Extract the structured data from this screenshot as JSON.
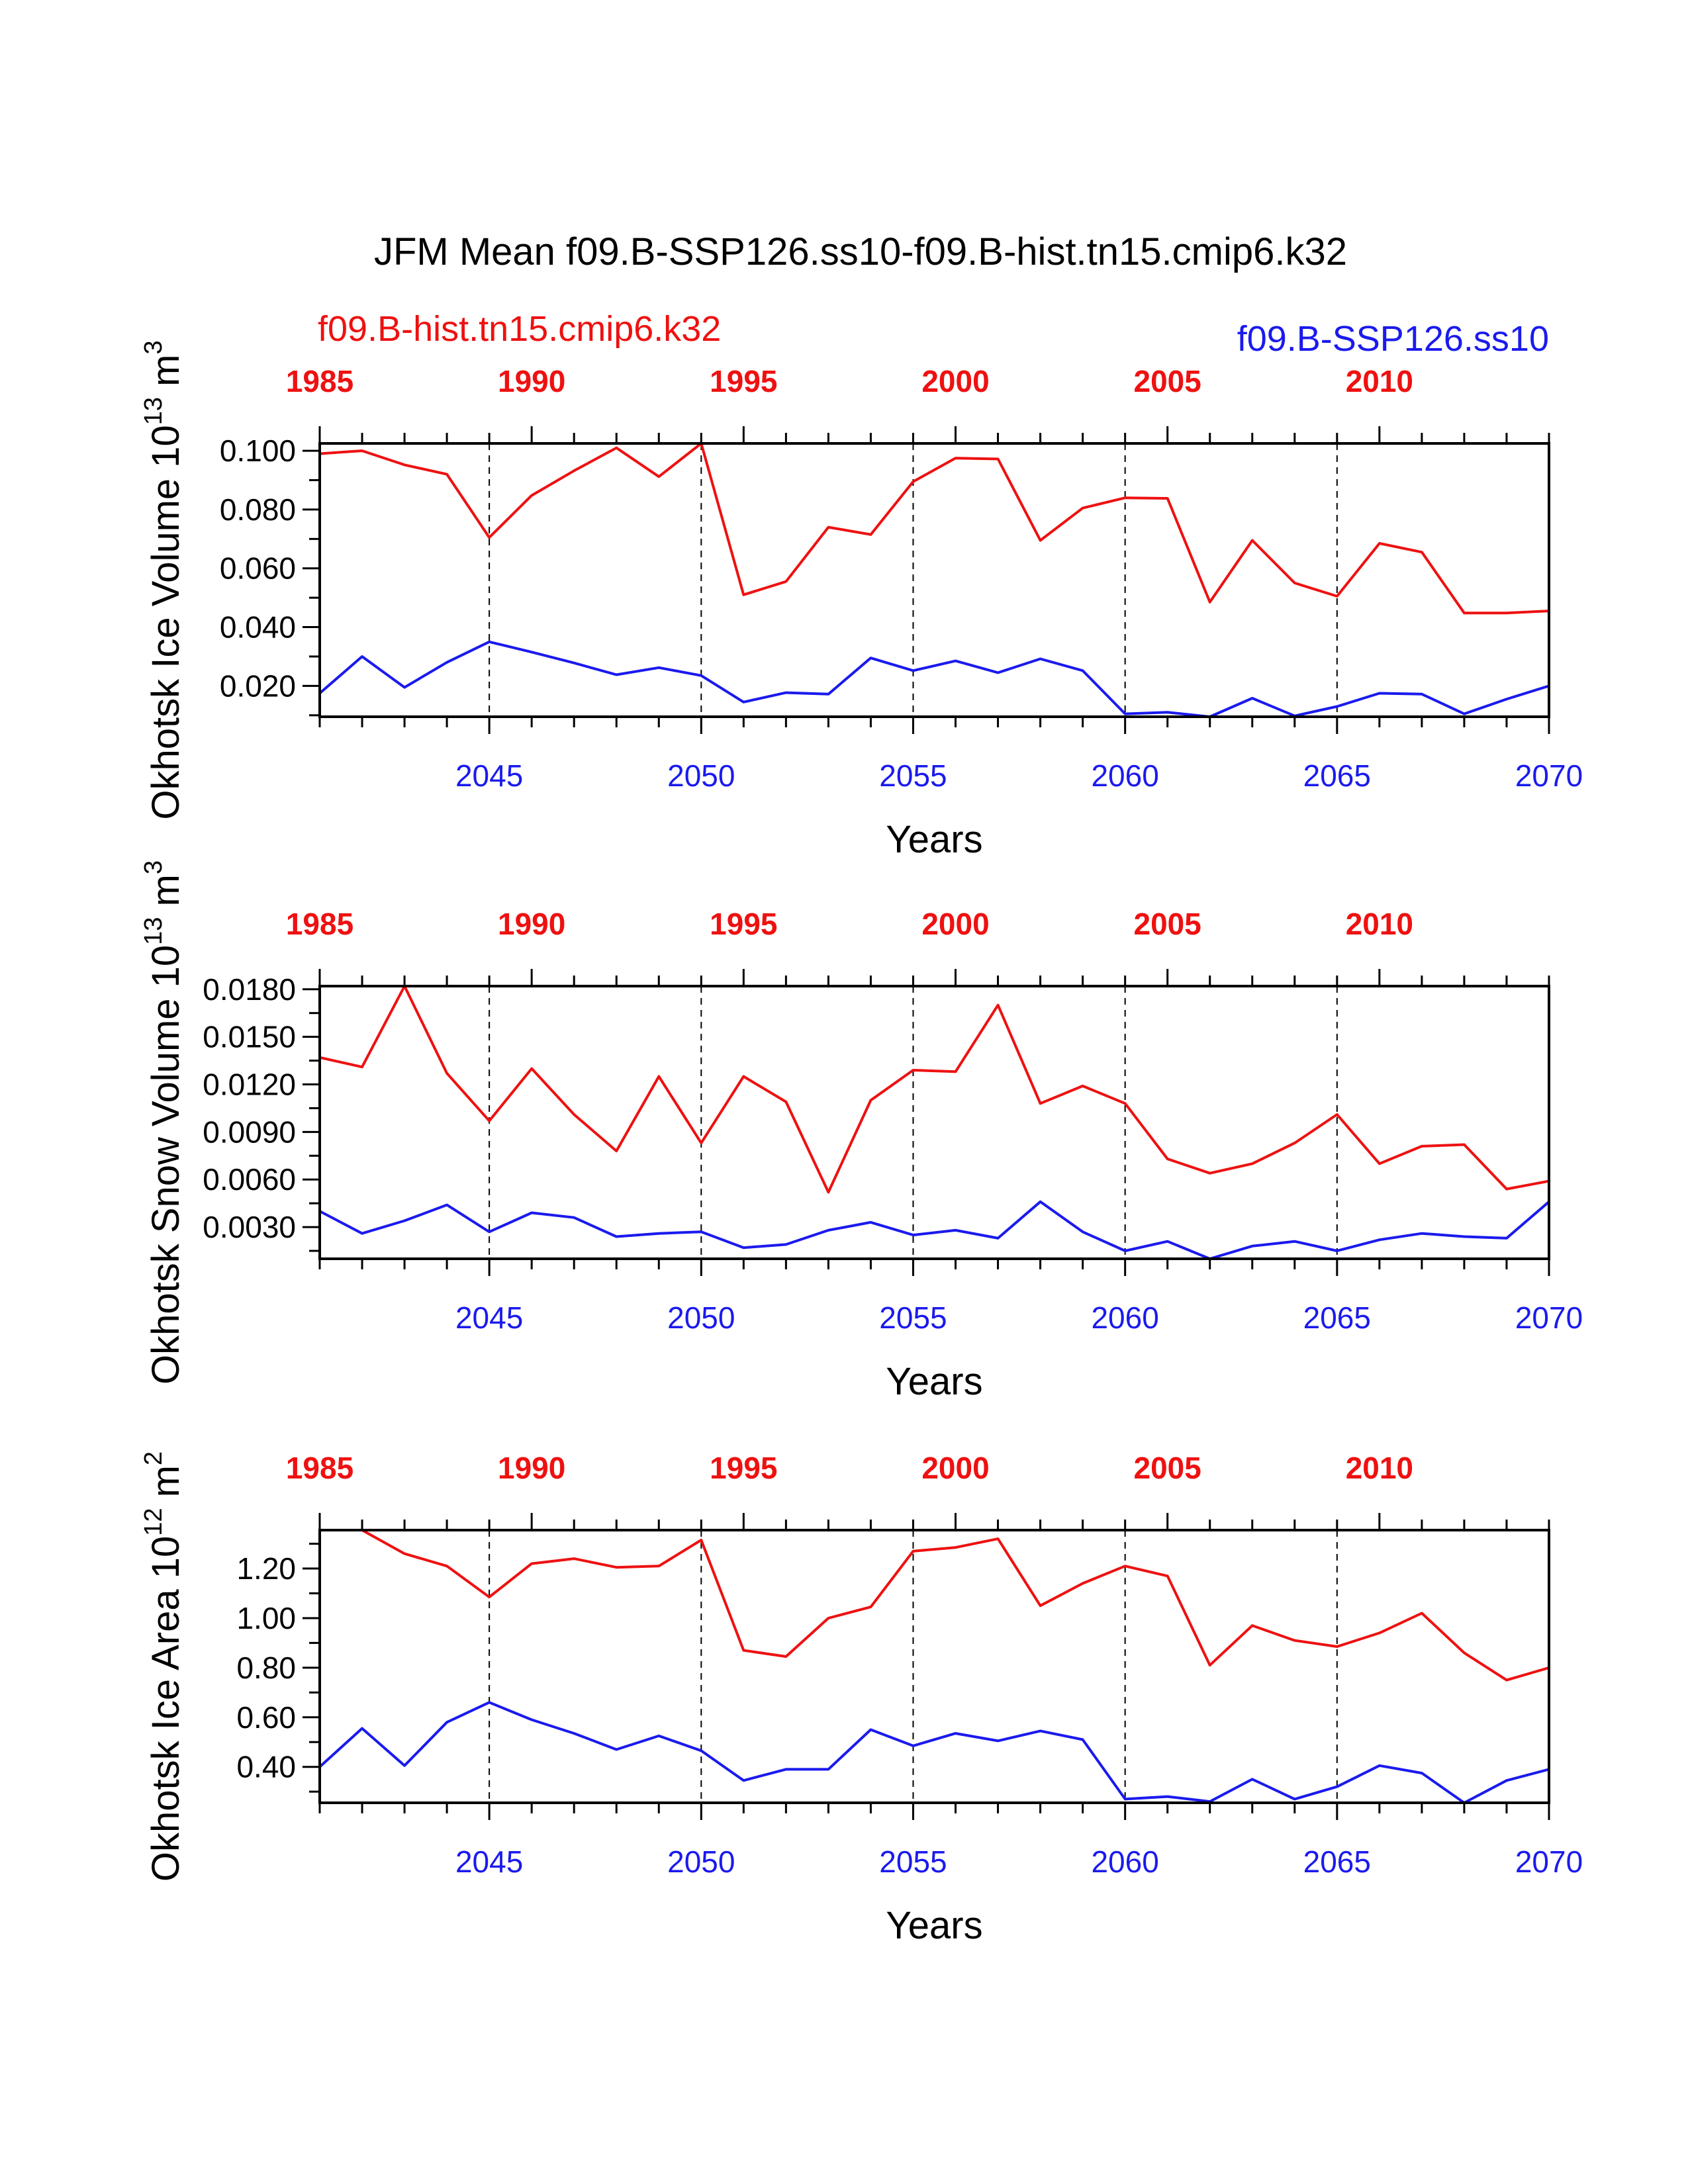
{
  "title": "JFM Mean f09.B-SSP126.ss10-f09.B-hist.tn15.cmip6.k32",
  "legend": {
    "hist_label": "f09.B-hist.tn15.cmip6.k32",
    "ssp_label": "f09.B-SSP126.ss10"
  },
  "colors": {
    "hist": "#ee1111",
    "ssp": "#1a1aee",
    "axis": "#000000"
  },
  "chart_data": [
    {
      "type": "line",
      "ylabel": "Okhotsk Ice Volume 10",
      "ylabel_exp": "13",
      "ylabel_unit": " m",
      "ylabel_unit_exp": "3",
      "xlabel": "Years",
      "ylim": [
        0.0095,
        0.1025
      ],
      "yticks": [
        0.02,
        0.04,
        0.06,
        0.08,
        0.1
      ],
      "ytick_labels": [
        "0.020",
        "0.040",
        "0.060",
        "0.080",
        "0.100"
      ],
      "bottom_xlim": [
        2041,
        2070
      ],
      "bottom_ticks": [
        2045,
        2050,
        2055,
        2060,
        2065,
        2070
      ],
      "top_ticks": [
        1985,
        1990,
        1995,
        2000,
        2005,
        2010
      ],
      "top_tick_offset": 56,
      "grid_x": [
        2045,
        2050,
        2055,
        2060,
        2065
      ],
      "series": [
        {
          "name": "f09.B-hist.tn15.cmip6.k32",
          "x": [
            2041,
            2042,
            2043,
            2044,
            2045,
            2046,
            2047,
            2048,
            2049,
            2050,
            2051,
            2052,
            2053,
            2054,
            2055,
            2056,
            2057,
            2058,
            2059,
            2060,
            2061,
            2062,
            2063,
            2064,
            2065,
            2066,
            2067,
            2068,
            2069,
            2070
          ],
          "values": [
            0.099,
            0.1,
            0.0952,
            0.092,
            0.0705,
            0.0848,
            0.0932,
            0.101,
            0.0912,
            0.1025,
            0.051,
            0.0555,
            0.074,
            0.0715,
            0.0895,
            0.0975,
            0.0972,
            0.0695,
            0.0805,
            0.084,
            0.0838,
            0.0485,
            0.0695,
            0.055,
            0.0505,
            0.0685,
            0.0655,
            0.0448,
            0.0448,
            0.0455
          ]
        },
        {
          "name": "f09.B-SSP126.ss10",
          "x": [
            2041,
            2042,
            2043,
            2044,
            2045,
            2046,
            2047,
            2048,
            2049,
            2050,
            2051,
            2052,
            2053,
            2054,
            2055,
            2056,
            2057,
            2058,
            2059,
            2060,
            2061,
            2062,
            2063,
            2064,
            2065,
            2066,
            2067,
            2068,
            2069,
            2070
          ],
          "values": [
            0.0175,
            0.03,
            0.0195,
            0.028,
            0.035,
            0.0315,
            0.0278,
            0.0238,
            0.0262,
            0.0235,
            0.0145,
            0.0177,
            0.0172,
            0.0295,
            0.0252,
            0.0285,
            0.0245,
            0.0292,
            0.0252,
            0.0105,
            0.011,
            0.0095,
            0.0158,
            0.0098,
            0.013,
            0.0175,
            0.0172,
            0.0105,
            0.0155,
            0.02
          ]
        }
      ]
    },
    {
      "type": "line",
      "ylabel": "Okhotsk Snow Volume 10",
      "ylabel_exp": "13",
      "ylabel_unit": " m",
      "ylabel_unit_exp": "3",
      "xlabel": "Years",
      "ylim": [
        0.001,
        0.0182
      ],
      "yticks": [
        0.003,
        0.006,
        0.009,
        0.012,
        0.015,
        0.018
      ],
      "ytick_labels": [
        "0.0030",
        "0.0060",
        "0.0090",
        "0.0120",
        "0.0150",
        "0.0180"
      ],
      "bottom_xlim": [
        2041,
        2070
      ],
      "bottom_ticks": [
        2045,
        2050,
        2055,
        2060,
        2065,
        2070
      ],
      "top_ticks": [
        1985,
        1990,
        1995,
        2000,
        2005,
        2010
      ],
      "top_tick_offset": 56,
      "grid_x": [
        2045,
        2050,
        2055,
        2060,
        2065
      ],
      "series": [
        {
          "name": "f09.B-hist.tn15.cmip6.k32",
          "x": [
            2041,
            2042,
            2043,
            2044,
            2045,
            2046,
            2047,
            2048,
            2049,
            2050,
            2051,
            2052,
            2053,
            2054,
            2055,
            2056,
            2057,
            2058,
            2059,
            2060,
            2061,
            2062,
            2063,
            2064,
            2065,
            2066,
            2067,
            2068,
            2069,
            2070
          ],
          "values": [
            0.0137,
            0.0131,
            0.0182,
            0.0127,
            0.0097,
            0.013,
            0.0101,
            0.0078,
            0.0125,
            0.0083,
            0.0125,
            0.0109,
            0.0052,
            0.011,
            0.0129,
            0.0128,
            0.017,
            0.0108,
            0.0119,
            0.0108,
            0.0073,
            0.0064,
            0.007,
            0.0083,
            0.0101,
            0.007,
            0.0081,
            0.0082,
            0.0054,
            0.0059
          ]
        },
        {
          "name": "f09.B-SSP126.ss10",
          "x": [
            2041,
            2042,
            2043,
            2044,
            2045,
            2046,
            2047,
            2048,
            2049,
            2050,
            2051,
            2052,
            2053,
            2054,
            2055,
            2056,
            2057,
            2058,
            2059,
            2060,
            2061,
            2062,
            2063,
            2064,
            2065,
            2066,
            2067,
            2068,
            2069,
            2070
          ],
          "values": [
            0.004,
            0.0026,
            0.0034,
            0.0044,
            0.0027,
            0.0039,
            0.0036,
            0.0024,
            0.0026,
            0.0027,
            0.0017,
            0.0019,
            0.0028,
            0.0033,
            0.0025,
            0.0028,
            0.0023,
            0.0046,
            0.0027,
            0.0015,
            0.0021,
            0.001,
            0.0018,
            0.0021,
            0.0015,
            0.0022,
            0.0026,
            0.0024,
            0.0023,
            0.0046
          ]
        }
      ]
    },
    {
      "type": "line",
      "ylabel": "Okhotsk Ice Area 10",
      "ylabel_exp": "12",
      "ylabel_unit": " m",
      "ylabel_unit_exp": "2",
      "xlabel": "Years",
      "ylim": [
        0.255,
        1.355
      ],
      "yticks": [
        0.4,
        0.6,
        0.8,
        1.0,
        1.2
      ],
      "ytick_labels": [
        "0.40",
        "0.60",
        "0.80",
        "1.00",
        "1.20"
      ],
      "bottom_xlim": [
        2041,
        2070
      ],
      "bottom_ticks": [
        2045,
        2050,
        2055,
        2060,
        2065,
        2070
      ],
      "top_ticks": [
        1985,
        1990,
        1995,
        2000,
        2005,
        2010
      ],
      "top_tick_offset": 56,
      "grid_x": [
        2045,
        2050,
        2055,
        2060,
        2065
      ],
      "series": [
        {
          "name": "f09.B-hist.tn15.cmip6.k32",
          "x": [
            2042,
            2043,
            2044,
            2045,
            2046,
            2047,
            2048,
            2049,
            2050,
            2051,
            2052,
            2053,
            2054,
            2055,
            2056,
            2057,
            2058,
            2059,
            2060,
            2061,
            2062,
            2063,
            2064,
            2065,
            2066,
            2067,
            2068,
            2069,
            2070
          ],
          "values": [
            1.355,
            1.26,
            1.21,
            1.085,
            1.22,
            1.24,
            1.205,
            1.21,
            1.315,
            0.87,
            0.845,
            1.0,
            1.045,
            1.27,
            1.285,
            1.32,
            1.05,
            1.14,
            1.21,
            1.17,
            0.81,
            0.97,
            0.91,
            0.885,
            0.94,
            1.02,
            0.86,
            0.75,
            0.8
          ]
        },
        {
          "name": "f09.B-SSP126.ss10",
          "x": [
            2041,
            2042,
            2043,
            2044,
            2045,
            2046,
            2047,
            2048,
            2049,
            2050,
            2051,
            2052,
            2053,
            2054,
            2055,
            2056,
            2057,
            2058,
            2059,
            2060,
            2061,
            2062,
            2063,
            2064,
            2065,
            2066,
            2067,
            2068,
            2069,
            2070
          ],
          "values": [
            0.4,
            0.555,
            0.405,
            0.58,
            0.66,
            0.59,
            0.535,
            0.47,
            0.525,
            0.465,
            0.345,
            0.39,
            0.39,
            0.55,
            0.485,
            0.535,
            0.505,
            0.545,
            0.51,
            0.27,
            0.28,
            0.26,
            0.35,
            0.27,
            0.32,
            0.405,
            0.375,
            0.255,
            0.345,
            0.39
          ]
        }
      ]
    }
  ]
}
